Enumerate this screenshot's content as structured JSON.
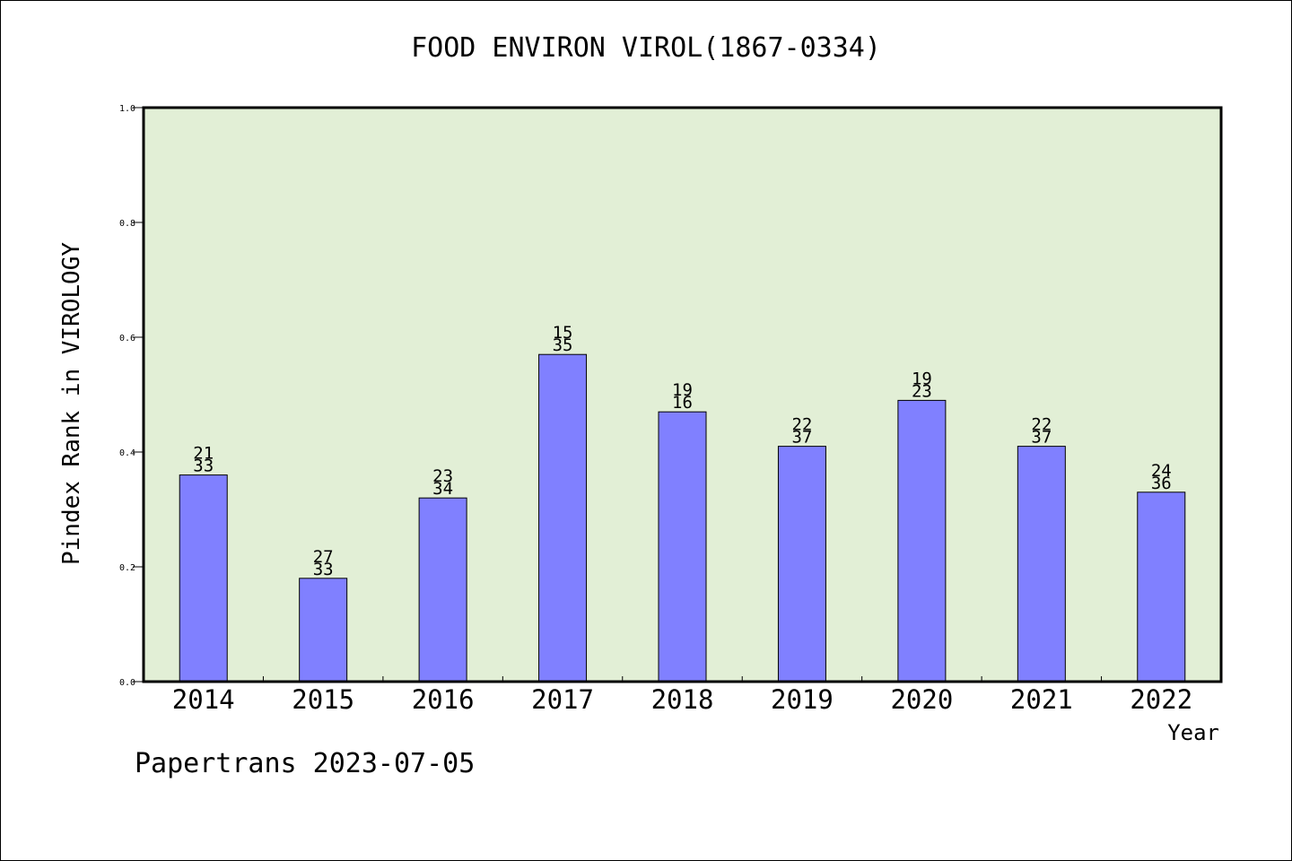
{
  "chart_data": {
    "type": "bar",
    "title": "FOOD ENVIRON VIROL(1867-0334)",
    "xlabel": "Year",
    "ylabel": "Pindex Rank in VIROLOGY",
    "footer": "Papertrans 2023-07-05",
    "categories": [
      "2014",
      "2015",
      "2016",
      "2017",
      "2018",
      "2019",
      "2020",
      "2021",
      "2022"
    ],
    "values": [
      0.36,
      0.18,
      0.32,
      0.57,
      0.47,
      0.41,
      0.49,
      0.41,
      0.33
    ],
    "labels_top": [
      "21",
      "27",
      "23",
      "15",
      "19",
      "22",
      "19",
      "22",
      "24"
    ],
    "labels_bottom": [
      "33",
      "33",
      "34",
      "35",
      "16",
      "37",
      "23",
      "37",
      "36"
    ],
    "ylim": [
      0,
      1.0
    ],
    "yticks": [
      "0.0",
      "0.2",
      "0.4",
      "0.6",
      "0.8",
      "1.0"
    ],
    "grid": false,
    "colors": {
      "plot_background": "#e2efd6",
      "bar_fill": "#8080ff",
      "bar_edge": "#000000"
    }
  }
}
